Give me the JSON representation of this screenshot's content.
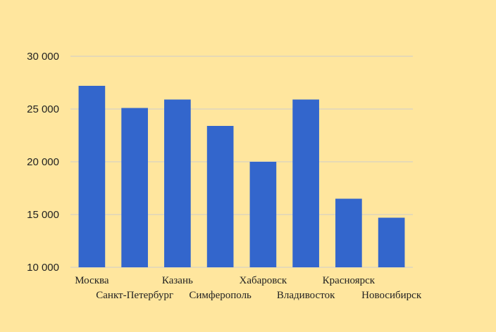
{
  "chart_data": {
    "type": "bar",
    "categories": [
      "Москва",
      "Санкт-Петербург",
      "Казань",
      "Симферополь",
      "Хабаровск",
      "Владивосток",
      "Красноярск",
      "Новосибирск"
    ],
    "values": [
      27200,
      25100,
      25900,
      23400,
      20000,
      25900,
      16500,
      14700
    ],
    "ylim": [
      10000,
      30000
    ],
    "yticks": [
      10000,
      15000,
      20000,
      25000,
      30000
    ],
    "ytick_labels": [
      "10 000",
      "15 000",
      "20 000",
      "25 000",
      "30 000"
    ],
    "grid": true,
    "colors": {
      "bar": "#3366CC",
      "background": "#FFE69E",
      "grid": "#CCCCCC"
    }
  }
}
